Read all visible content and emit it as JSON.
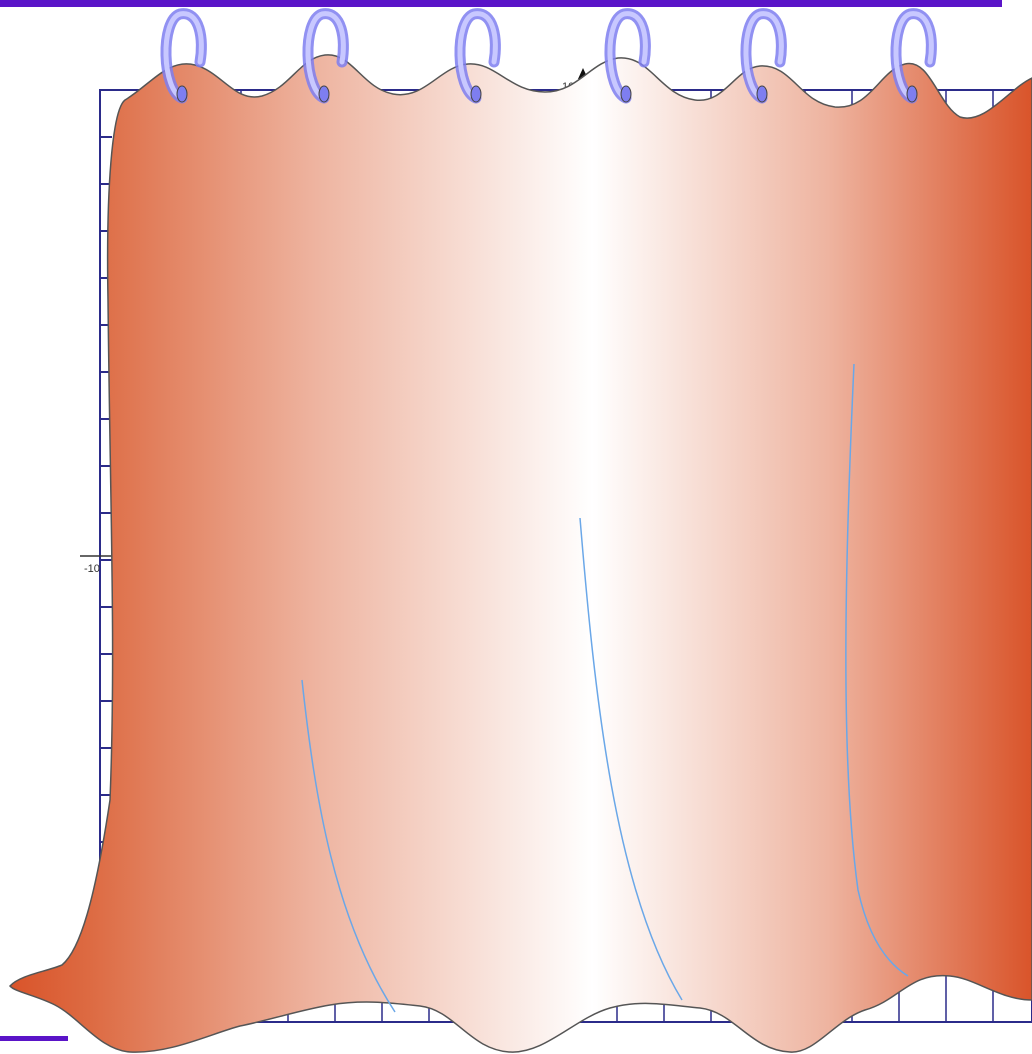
{
  "colors": {
    "rod": "#5a14c8",
    "grid": "#2b2b8a",
    "grid_fill": "#ffffff",
    "curtain_edge": "#d9542a",
    "curtain_mid": "#ffffff",
    "curtain_outline": "#555555",
    "ring": "#7e7ef0",
    "ring_light": "#c8c8ff",
    "fold_line": "#6aa7e8"
  },
  "grid": {
    "tick_labels": {
      "x_top": "10",
      "y_left": "-10"
    }
  },
  "icons": {
    "ring": "curtain-ring-icon"
  }
}
